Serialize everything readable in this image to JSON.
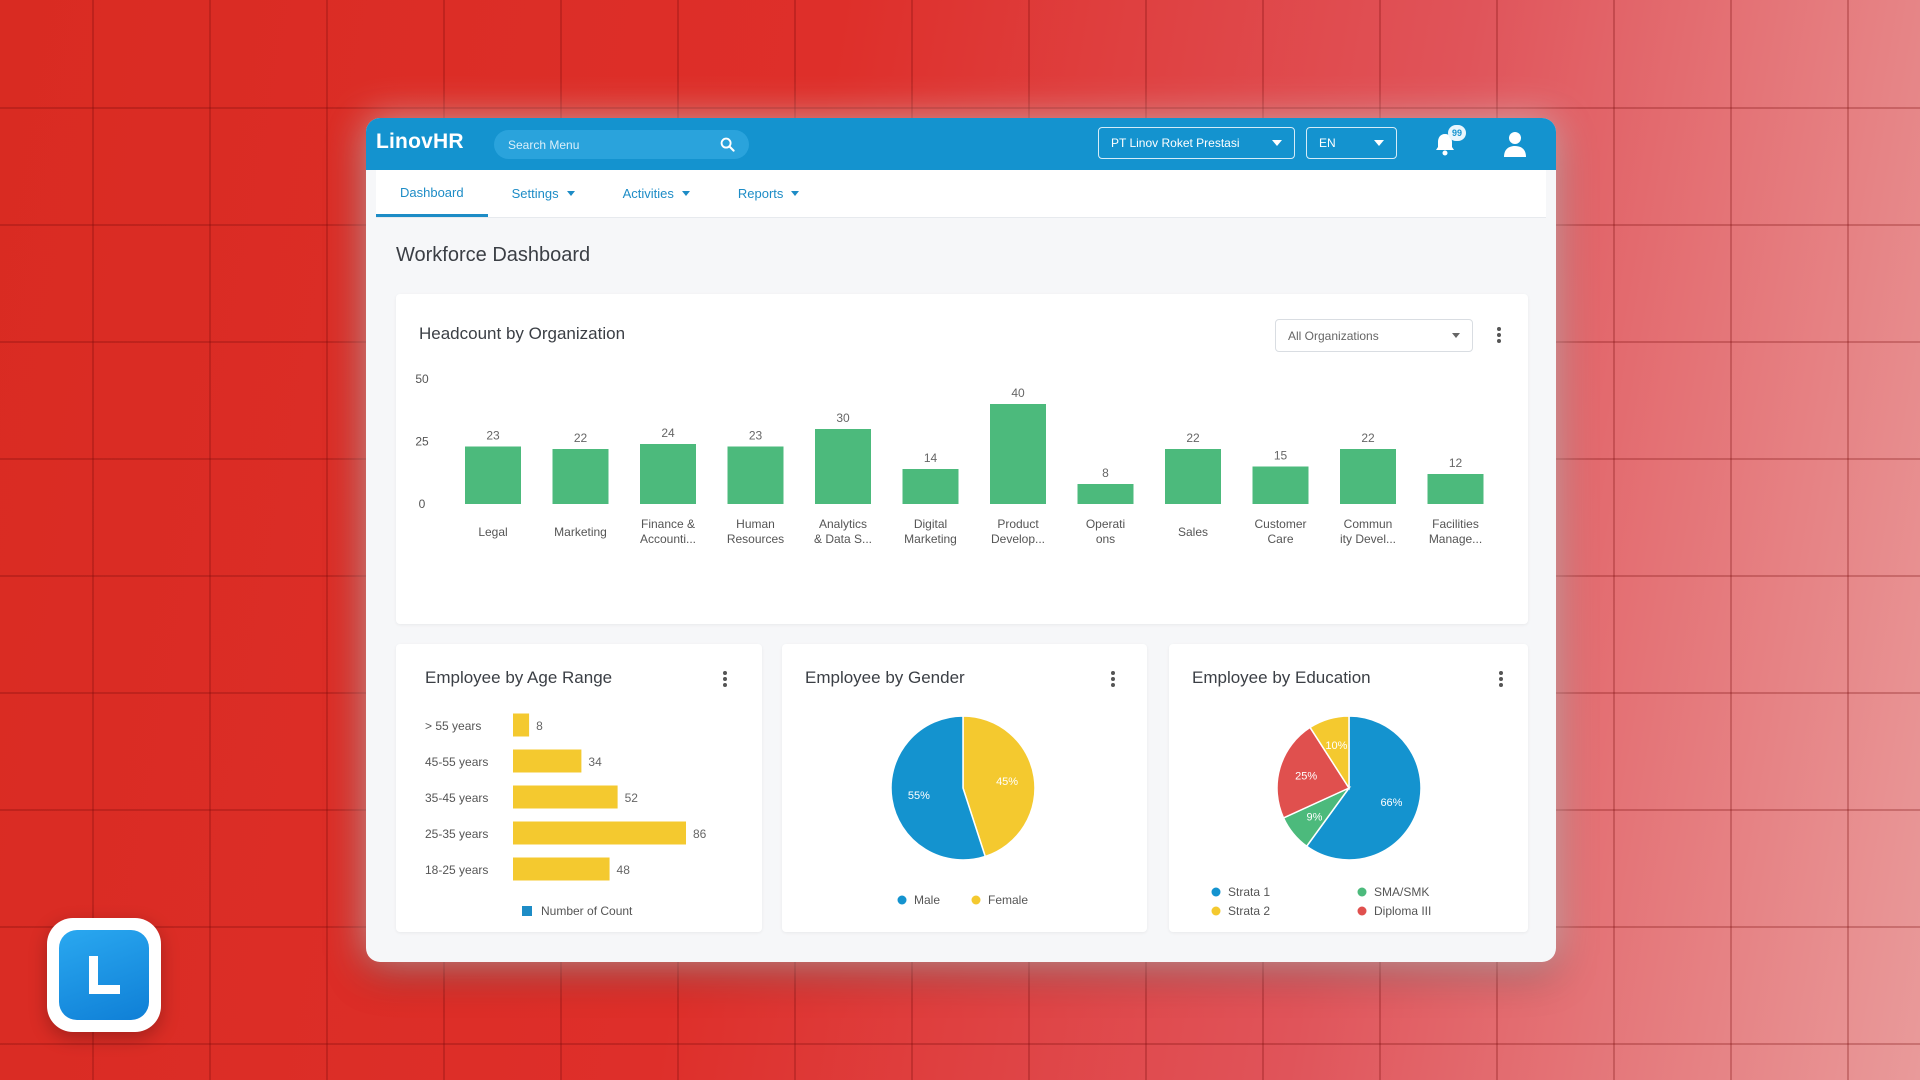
{
  "app": {
    "brand": "LinovHR"
  },
  "search": {
    "placeholder": "Search Menu"
  },
  "header": {
    "company": "PT Linov Roket Prestasi",
    "language": "EN",
    "notification_count": "99"
  },
  "nav": {
    "items": [
      {
        "label": "Dashboard",
        "active": true,
        "dropdown": false
      },
      {
        "label": "Settings",
        "active": false,
        "dropdown": true
      },
      {
        "label": "Activities",
        "active": false,
        "dropdown": true
      },
      {
        "label": "Reports",
        "active": false,
        "dropdown": true
      }
    ]
  },
  "page": {
    "title": "Workforce Dashboard"
  },
  "headcount": {
    "title": "Headcount by Organization",
    "filter": "All Organizations",
    "chart_data": {
      "type": "bar",
      "categories": [
        [
          "Legal"
        ],
        [
          "Marketing"
        ],
        [
          "Finance &",
          "Accounti..."
        ],
        [
          "Human",
          "Resources"
        ],
        [
          "Analytics",
          "& Data S..."
        ],
        [
          "Digital",
          "Marketing"
        ],
        [
          "Product",
          "Develop..."
        ],
        [
          "Operati",
          "ons"
        ],
        [
          "Sales"
        ],
        [
          "Customer",
          "Care"
        ],
        [
          "Commun",
          "ity Devel..."
        ],
        [
          "Facilities",
          "Manage..."
        ]
      ],
      "values": [
        23,
        22,
        24,
        23,
        30,
        14,
        40,
        8,
        22,
        15,
        22,
        12
      ],
      "yticks": [
        0,
        25,
        50
      ],
      "ylim": [
        0,
        50
      ],
      "color": "#4cba7c"
    }
  },
  "age": {
    "title": "Employee by Age Range",
    "chart_data": {
      "type": "bar",
      "orientation": "horizontal",
      "categories": [
        "> 55 years",
        "45-55 years",
        "35-45 years",
        "25-35 years",
        "18-25 years"
      ],
      "values": [
        8,
        34,
        52,
        86,
        48
      ],
      "color": "#f4c92f",
      "legend": "Number of Count",
      "legend_color": "#1d8cc6"
    }
  },
  "gender": {
    "title": "Employee by Gender",
    "chart_data": {
      "type": "pie",
      "slices": [
        {
          "name": "Male",
          "value": 55,
          "label": "55%",
          "color": "#1493cf"
        },
        {
          "name": "Female",
          "value": 45,
          "label": "45%",
          "color": "#f4c92f"
        }
      ]
    }
  },
  "education": {
    "title": "Employee by Education",
    "chart_data": {
      "type": "pie",
      "slices": [
        {
          "name": "Strata 1",
          "value": 66,
          "label": "66%",
          "color": "#1493cf"
        },
        {
          "name": "SMA/SMK",
          "value": 9,
          "label": "9%",
          "color": "#4cba7c"
        },
        {
          "name": "Diploma III",
          "value": 25,
          "label": "25%",
          "color": "#e0504e"
        },
        {
          "name": "Strata 2",
          "value": 10,
          "label": "10%",
          "color": "#f4c92f"
        }
      ],
      "legend": [
        [
          "Strata 1",
          "SMA/SMK"
        ],
        [
          "Strata 2",
          "Diploma III"
        ]
      ]
    }
  }
}
